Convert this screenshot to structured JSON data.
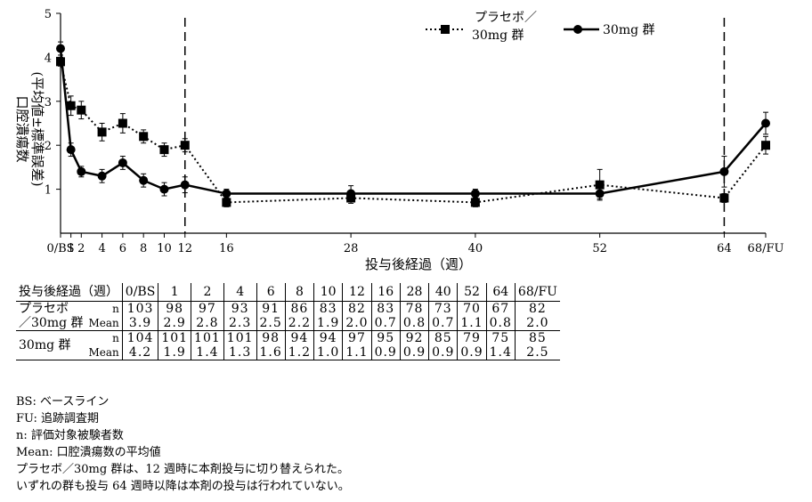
{
  "chart_data": {
    "type": "line",
    "ylabel": "口腔潰瘍数\n(平均値±標準誤差)",
    "xlabel": "投与後経過（週）",
    "ylim": [
      0,
      5
    ],
    "yticks": [
      1,
      2,
      3,
      4,
      5
    ],
    "xticks": [
      "0/BS",
      "1",
      "2",
      "4",
      "6",
      "8",
      "10",
      "12",
      "16",
      "28",
      "40",
      "52",
      "64",
      "68/FU"
    ],
    "x": [
      0,
      1,
      2,
      4,
      6,
      8,
      10,
      12,
      16,
      28,
      40,
      52,
      64,
      68
    ],
    "reference_lines_x": [
      12,
      64
    ],
    "legend_position": "top-right",
    "series": [
      {
        "name": "プラセボ／30mg 群",
        "marker": "square",
        "line_style": "dotted",
        "values": [
          3.9,
          2.9,
          2.8,
          2.3,
          2.5,
          2.2,
          1.9,
          2.0,
          0.7,
          0.8,
          0.7,
          1.1,
          0.8,
          2.0
        ],
        "errors": [
          0.1,
          0.22,
          0.2,
          0.2,
          0.22,
          0.15,
          0.15,
          0.15,
          0.1,
          0.12,
          0.1,
          0.35,
          0.1,
          0.2
        ]
      },
      {
        "name": "30mg 群",
        "marker": "circle",
        "line_style": "solid",
        "values": [
          4.2,
          1.9,
          1.4,
          1.3,
          1.6,
          1.2,
          1.0,
          1.1,
          0.9,
          0.9,
          0.9,
          0.9,
          1.4,
          2.5
        ],
        "errors": [
          0.15,
          0.15,
          0.12,
          0.15,
          0.15,
          0.15,
          0.15,
          0.18,
          0.1,
          0.18,
          0.1,
          0.12,
          0.35,
          0.25
        ]
      }
    ]
  },
  "legend": {
    "placebo_line1": "プラセボ／",
    "placebo_line2": "30mg 群",
    "treatment": "30mg 群"
  },
  "table": {
    "header_label": "投与後経過（週）",
    "headers": [
      "0/BS",
      "1",
      "2",
      "4",
      "6",
      "8",
      "10",
      "12",
      "16",
      "28",
      "40",
      "52",
      "64",
      "68/FU"
    ],
    "groups": [
      {
        "label_line1": "プラセボ",
        "label_line2": "／30mg 群",
        "n_label": "n",
        "mean_label": "Mean",
        "n": [
          "103",
          "98",
          "97",
          "93",
          "91",
          "86",
          "83",
          "82",
          "83",
          "78",
          "73",
          "70",
          "67",
          "82"
        ],
        "mean": [
          "3.9",
          "2.9",
          "2.8",
          "2.3",
          "2.5",
          "2.2",
          "1.9",
          "2.0",
          "0.7",
          "0.8",
          "0.7",
          "1.1",
          "0.8",
          "2.0"
        ]
      },
      {
        "label_line1": "30mg 群",
        "label_line2": "",
        "n_label": "n",
        "mean_label": "Mean",
        "n": [
          "104",
          "101",
          "101",
          "101",
          "98",
          "94",
          "94",
          "97",
          "95",
          "92",
          "85",
          "79",
          "75",
          "85"
        ],
        "mean": [
          "4.2",
          "1.9",
          "1.4",
          "1.3",
          "1.6",
          "1.2",
          "1.0",
          "1.1",
          "0.9",
          "0.9",
          "0.9",
          "0.9",
          "1.4",
          "2.5"
        ]
      }
    ]
  },
  "notes": [
    "BS: ベースライン",
    "FU: 追跡調査期",
    "n: 評価対象被験者数",
    "Mean: 口腔潰瘍数の平均値",
    "プラセボ／30mg 群は、12 週時に本剤投与に切り替えられた。",
    "いずれの群も投与 64 週時以降は本剤の投与は行われていない。"
  ]
}
